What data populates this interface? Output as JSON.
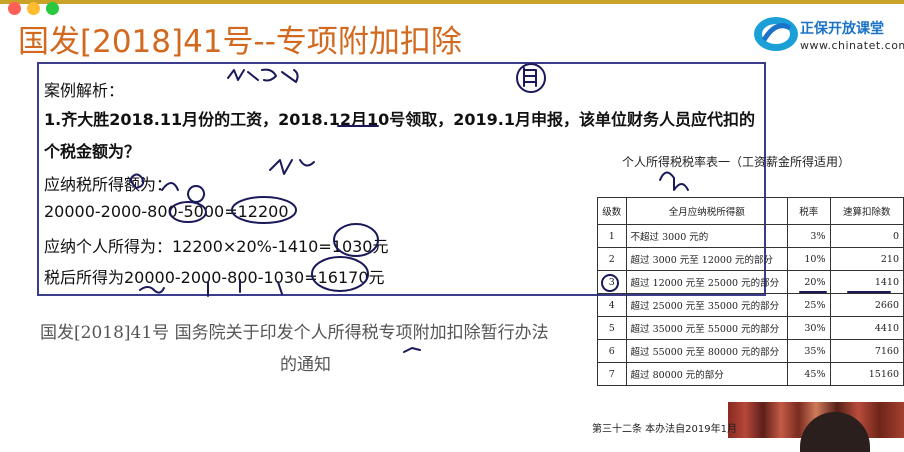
{
  "header": {
    "title": "国发[2018]41号--专项附加扣除",
    "logo_name": "正保开放课堂",
    "logo_url": "www.chinatet.com"
  },
  "case": {
    "heading": "案例解析：",
    "question_line1": "1.齐大胜2018.11月份的工资，2018.12月10号领取，2019.1月申报，该单位财务人员应代扣的",
    "question_line2": "个税金额为？",
    "taxable_label": "应纳税所得额为：",
    "taxable_calc": "20000-2000-800-5000=12200",
    "tax_due": "应纳个人所得为：12200×20%-1410=1030元",
    "after_tax": "税后所得为20000-2000-800-1030=16170元"
  },
  "citation": {
    "line1": "国发[2018]41号  国务院关于印发个人所得税专项附加扣除暂行办法",
    "line2": "的通知"
  },
  "rate_table": {
    "title": "个人所得税税率表一（工资薪金所得适用）",
    "headers": [
      "级数",
      "全月应纳税所得额",
      "税率",
      "速算扣除数"
    ],
    "rows": [
      [
        "1",
        "不超过 3000 元的",
        "3%",
        "0"
      ],
      [
        "2",
        "超过 3000 元至 12000 元的部分",
        "10%",
        "210"
      ],
      [
        "3",
        "超过 12000 元至 25000 元的部分",
        "20%",
        "1410"
      ],
      [
        "4",
        "超过 25000 元至 35000 元的部分",
        "25%",
        "2660"
      ],
      [
        "5",
        "超过 35000 元至 55000 元的部分",
        "30%",
        "4410"
      ],
      [
        "6",
        "超过 55000 元至 80000 元的部分",
        "35%",
        "7160"
      ],
      [
        "7",
        "超过 80000 元的部分",
        "45%",
        "15160"
      ]
    ]
  },
  "footer": {
    "note": "第三十二条  本办法自2019年1月"
  },
  "colors": {
    "title": "#d2691e",
    "box_border": "#3c3c8c",
    "ink": "#1a1a5a",
    "brand": "#1a73c8"
  }
}
